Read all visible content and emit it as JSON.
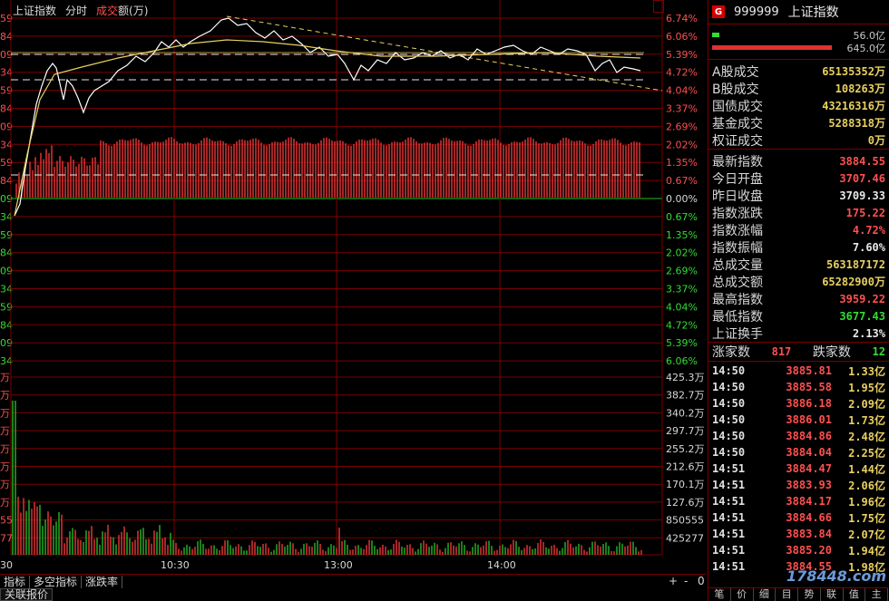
{
  "chart_header": {
    "index_label": "上证指数",
    "mode_label": "分时",
    "turnover_prefix": "成交",
    "turnover_suffix": "额(万)"
  },
  "left_axis": [
    "59",
    "84",
    "09",
    "34",
    "59",
    "84",
    "09",
    "34",
    "59",
    "84",
    "09",
    "34",
    "59",
    "84",
    "09",
    "34",
    "59",
    "84",
    "09",
    "34",
    "59",
    "84",
    "09",
    "34",
    "59",
    "84",
    "09",
    "34",
    "59",
    "30"
  ],
  "right_pct_axis": [
    "6.74%",
    "6.06%",
    "5.39%",
    "4.72%",
    "4.04%",
    "3.37%",
    "2.69%",
    "2.02%",
    "1.35%",
    "0.67%",
    "0.00%",
    "0.67%",
    "1.35%",
    "2.02%",
    "2.69%",
    "3.37%",
    "4.04%",
    "4.72%",
    "5.39%",
    "6.06%"
  ],
  "right_vol_axis": [
    "425.3万",
    "382.7万",
    "340.2万",
    "297.7万",
    "255.2万",
    "212.6万",
    "170.1万",
    "127.6万",
    "850555",
    "425277"
  ],
  "left_vol_axis": [
    "万",
    "万",
    "万",
    "万",
    "万",
    "万",
    "万",
    "万",
    "55",
    "77"
  ],
  "time_axis": [
    "10:30",
    "13:00",
    "14:00"
  ],
  "bottom_tabs": [
    "指标",
    "多空指标",
    "涨跌率"
  ],
  "bottom_controls": {
    "plus": "+",
    "minus": "-",
    "zero": "0"
  },
  "bottom_tabs2": [
    "关联报价"
  ],
  "panel": {
    "badge": "G",
    "code": "999999",
    "name": "上证指数",
    "vol_top_label": "56.0亿",
    "vol_bottom_label": "645.0亿",
    "stats_a": [
      {
        "k": "A股成交",
        "v": "65135352万",
        "c": "#e8d060"
      },
      {
        "k": "B股成交",
        "v": "108263万",
        "c": "#e8d060"
      },
      {
        "k": "国债成交",
        "v": "43216316万",
        "c": "#e8d060"
      },
      {
        "k": "基金成交",
        "v": "5288318万",
        "c": "#e8d060"
      },
      {
        "k": "权证成交",
        "v": "0万",
        "c": "#e8d060"
      }
    ],
    "stats_b": [
      {
        "k": "最新指数",
        "v": "3884.55",
        "c": "#ff5050"
      },
      {
        "k": "今日开盘",
        "v": "3707.46",
        "c": "#ff5050"
      },
      {
        "k": "昨日收盘",
        "v": "3709.33",
        "c": "#e8e8e8"
      },
      {
        "k": "指数涨跌",
        "v": "175.22",
        "c": "#ff5050"
      },
      {
        "k": "指数涨幅",
        "v": "4.72%",
        "c": "#ff5050"
      },
      {
        "k": "指数振幅",
        "v": "7.60%",
        "c": "#e8e8e8"
      },
      {
        "k": "总成交量",
        "v": "563187172",
        "c": "#e8d060"
      },
      {
        "k": "总成交额",
        "v": "65282900万",
        "c": "#e8d060"
      },
      {
        "k": "最高指数",
        "v": "3959.22",
        "c": "#ff5050"
      },
      {
        "k": "最低指数",
        "v": "3677.43",
        "c": "#33dd33"
      },
      {
        "k": "上证换手",
        "v": "2.13%",
        "c": "#e8e8e8"
      }
    ],
    "up_label": "涨家数",
    "up_value": "817",
    "down_label": "跌家数",
    "down_value": "12",
    "ticks": [
      {
        "t": "14:50",
        "p": "3885.81",
        "a": "1.33亿"
      },
      {
        "t": "14:50",
        "p": "3885.58",
        "a": "1.95亿"
      },
      {
        "t": "14:50",
        "p": "3886.18",
        "a": "2.09亿"
      },
      {
        "t": "14:50",
        "p": "3886.01",
        "a": "1.73亿"
      },
      {
        "t": "14:50",
        "p": "3884.86",
        "a": "2.48亿"
      },
      {
        "t": "14:50",
        "p": "3884.04",
        "a": "2.25亿"
      },
      {
        "t": "14:51",
        "p": "3884.47",
        "a": "1.44亿"
      },
      {
        "t": "14:51",
        "p": "3883.93",
        "a": "2.06亿"
      },
      {
        "t": "14:51",
        "p": "3884.17",
        "a": "1.96亿"
      },
      {
        "t": "14:51",
        "p": "3884.66",
        "a": "1.75亿"
      },
      {
        "t": "14:51",
        "p": "3883.84",
        "a": "2.07亿"
      },
      {
        "t": "14:51",
        "p": "3885.20",
        "a": "1.94亿"
      },
      {
        "t": "14:51",
        "p": "3884.55",
        "a": "1.98亿"
      }
    ],
    "bottom_tabs": [
      "笔",
      "价",
      "细",
      "目",
      "势",
      "联",
      "值",
      "主"
    ],
    "watermark": "178448.com"
  },
  "colors": {
    "up": "#ff5050",
    "down": "#33dd33",
    "grid": "#7a0000",
    "price_line": "#ffffff",
    "avg_line": "#e8d060"
  }
}
